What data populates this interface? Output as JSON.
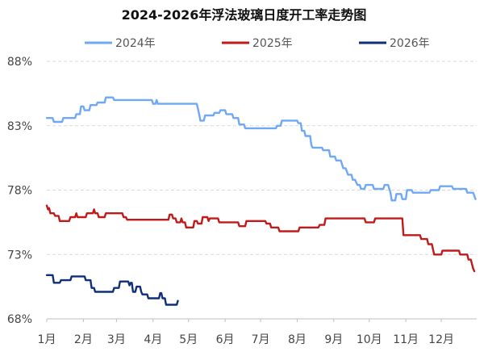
{
  "chart_data": {
    "type": "line",
    "title": "2024-2026年浮法玻璃日度开工率走势图",
    "xlabel": "",
    "ylabel": "",
    "x_unit": "day_of_year",
    "categories": [
      "1月",
      "2月",
      "3月",
      "4月",
      "5月",
      "6月",
      "7月",
      "8月",
      "9月",
      "10月",
      "11月",
      "12月"
    ],
    "yticks": [
      "68%",
      "73%",
      "78%",
      "83%",
      "88%"
    ],
    "ylim": [
      68,
      88
    ],
    "xlim": [
      1,
      365
    ],
    "grid": "horizontal dashed",
    "legend_position": "top",
    "series": [
      {
        "name": "2024年",
        "color": "#6FA8F5",
        "points": [
          [
            1,
            83.6
          ],
          [
            6,
            83.6
          ],
          [
            7,
            83.3
          ],
          [
            14,
            83.3
          ],
          [
            15,
            83.6
          ],
          [
            25,
            83.6
          ],
          [
            26,
            83.9
          ],
          [
            29,
            83.9
          ],
          [
            30,
            84.5
          ],
          [
            32,
            84.5
          ],
          [
            33,
            84.2
          ],
          [
            37,
            84.2
          ],
          [
            38,
            84.6
          ],
          [
            43,
            84.6
          ],
          [
            44,
            84.8
          ],
          [
            50,
            84.8
          ],
          [
            51,
            85.2
          ],
          [
            57,
            85.2
          ],
          [
            58,
            85.0
          ],
          [
            90,
            85.0
          ],
          [
            91,
            84.7
          ],
          [
            93,
            84.7
          ],
          [
            94,
            85.0
          ],
          [
            95,
            84.7
          ],
          [
            128,
            84.7
          ],
          [
            130,
            83.9
          ],
          [
            131,
            83.4
          ],
          [
            134,
            83.4
          ],
          [
            135,
            83.8
          ],
          [
            142,
            83.8
          ],
          [
            143,
            84.0
          ],
          [
            147,
            84.0
          ],
          [
            148,
            84.2
          ],
          [
            152,
            84.2
          ],
          [
            153,
            83.9
          ],
          [
            158,
            83.9
          ],
          [
            159,
            83.6
          ],
          [
            163,
            83.6
          ],
          [
            164,
            83.1
          ],
          [
            168,
            83.1
          ],
          [
            169,
            82.8
          ],
          [
            195,
            82.8
          ],
          [
            196,
            83.0
          ],
          [
            199,
            83.0
          ],
          [
            200,
            83.4
          ],
          [
            213,
            83.4
          ],
          [
            214,
            83.2
          ],
          [
            216,
            83.2
          ],
          [
            217,
            82.6
          ],
          [
            219,
            82.6
          ],
          [
            220,
            82.2
          ],
          [
            224,
            82.2
          ],
          [
            225,
            81.5
          ],
          [
            226,
            81.3
          ],
          [
            234,
            81.3
          ],
          [
            235,
            81.1
          ],
          [
            240,
            81.1
          ],
          [
            241,
            80.6
          ],
          [
            245,
            80.6
          ],
          [
            246,
            80.3
          ],
          [
            250,
            80.3
          ],
          [
            252,
            79.7
          ],
          [
            254,
            79.7
          ],
          [
            256,
            79.2
          ],
          [
            259,
            79.2
          ],
          [
            260,
            78.8
          ],
          [
            262,
            78.8
          ],
          [
            264,
            78.4
          ],
          [
            266,
            78.4
          ],
          [
            267,
            78.1
          ],
          [
            270,
            78.1
          ],
          [
            271,
            78.4
          ],
          [
            277,
            78.4
          ],
          [
            278,
            78.1
          ],
          [
            286,
            78.1
          ],
          [
            287,
            78.4
          ],
          [
            290,
            78.4
          ],
          [
            292,
            77.8
          ],
          [
            293,
            77.2
          ],
          [
            296,
            77.2
          ],
          [
            297,
            77.7
          ],
          [
            301,
            77.7
          ],
          [
            302,
            77.3
          ],
          [
            305,
            77.3
          ],
          [
            306,
            78.0
          ],
          [
            310,
            78.0
          ],
          [
            311,
            77.8
          ],
          [
            325,
            77.8
          ],
          [
            326,
            78.0
          ],
          [
            333,
            78.0
          ],
          [
            334,
            78.3
          ],
          [
            344,
            78.3
          ],
          [
            345,
            78.1
          ],
          [
            356,
            78.1
          ],
          [
            357,
            77.8
          ],
          [
            362,
            77.8
          ],
          [
            364,
            77.3
          ]
        ]
      },
      {
        "name": "2025年",
        "color": "#C21A1A",
        "points": [
          [
            1,
            76.8
          ],
          [
            2,
            76.5
          ],
          [
            3,
            76.6
          ],
          [
            4,
            76.2
          ],
          [
            7,
            76.2
          ],
          [
            8,
            76.0
          ],
          [
            11,
            76.0
          ],
          [
            12,
            75.6
          ],
          [
            20,
            75.6
          ],
          [
            21,
            75.9
          ],
          [
            25,
            75.9
          ],
          [
            26,
            76.2
          ],
          [
            27,
            75.9
          ],
          [
            34,
            75.9
          ],
          [
            35,
            76.2
          ],
          [
            40,
            76.2
          ],
          [
            41,
            76.5
          ],
          [
            42,
            76.2
          ],
          [
            44,
            76.2
          ],
          [
            45,
            75.9
          ],
          [
            50,
            75.9
          ],
          [
            51,
            76.2
          ],
          [
            65,
            76.2
          ],
          [
            66,
            75.9
          ],
          [
            68,
            75.9
          ],
          [
            69,
            75.7
          ],
          [
            104,
            75.7
          ],
          [
            105,
            76.1
          ],
          [
            107,
            76.1
          ],
          [
            108,
            75.8
          ],
          [
            110,
            75.8
          ],
          [
            111,
            75.5
          ],
          [
            114,
            75.5
          ],
          [
            115,
            75.8
          ],
          [
            116,
            75.5
          ],
          [
            118,
            75.5
          ],
          [
            119,
            75.1
          ],
          [
            125,
            75.1
          ],
          [
            126,
            75.6
          ],
          [
            128,
            75.6
          ],
          [
            129,
            75.4
          ],
          [
            132,
            75.4
          ],
          [
            133,
            75.9
          ],
          [
            137,
            75.9
          ],
          [
            138,
            75.6
          ],
          [
            139,
            75.8
          ],
          [
            146,
            75.8
          ],
          [
            147,
            75.5
          ],
          [
            163,
            75.5
          ],
          [
            164,
            75.2
          ],
          [
            169,
            75.2
          ],
          [
            170,
            75.6
          ],
          [
            186,
            75.6
          ],
          [
            187,
            75.4
          ],
          [
            190,
            75.4
          ],
          [
            191,
            75.1
          ],
          [
            197,
            75.1
          ],
          [
            198,
            74.8
          ],
          [
            214,
            74.8
          ],
          [
            215,
            75.1
          ],
          [
            231,
            75.1
          ],
          [
            232,
            75.3
          ],
          [
            236,
            75.3
          ],
          [
            237,
            75.8
          ],
          [
            270,
            75.8
          ],
          [
            271,
            75.5
          ],
          [
            278,
            75.5
          ],
          [
            279,
            75.8
          ],
          [
            302,
            75.8
          ],
          [
            303,
            74.5
          ],
          [
            317,
            74.5
          ],
          [
            318,
            74.2
          ],
          [
            323,
            74.2
          ],
          [
            324,
            73.8
          ],
          [
            327,
            73.8
          ],
          [
            328,
            73.4
          ],
          [
            329,
            73.0
          ],
          [
            335,
            73.0
          ],
          [
            336,
            73.3
          ],
          [
            350,
            73.3
          ],
          [
            351,
            73.0
          ],
          [
            357,
            73.0
          ],
          [
            358,
            72.6
          ],
          [
            360,
            72.6
          ],
          [
            362,
            71.9
          ],
          [
            363,
            71.7
          ]
        ]
      },
      {
        "name": "2026年",
        "color": "#0F2F7A",
        "points": [
          [
            1,
            71.4
          ],
          [
            6,
            71.4
          ],
          [
            7,
            70.8
          ],
          [
            12,
            70.8
          ],
          [
            13,
            71.0
          ],
          [
            21,
            71.0
          ],
          [
            22,
            71.3
          ],
          [
            33,
            71.3
          ],
          [
            34,
            71.0
          ],
          [
            38,
            71.0
          ],
          [
            39,
            70.4
          ],
          [
            41,
            70.4
          ],
          [
            42,
            70.1
          ],
          [
            57,
            70.1
          ],
          [
            58,
            70.4
          ],
          [
            62,
            70.4
          ],
          [
            63,
            70.9
          ],
          [
            70,
            70.9
          ],
          [
            71,
            70.6
          ],
          [
            72,
            70.8
          ],
          [
            73,
            70.8
          ],
          [
            74,
            70.1
          ],
          [
            76,
            70.1
          ],
          [
            77,
            70.5
          ],
          [
            80,
            70.5
          ],
          [
            81,
            70.1
          ],
          [
            82,
            69.9
          ],
          [
            86,
            69.9
          ],
          [
            87,
            69.6
          ],
          [
            96,
            69.6
          ],
          [
            97,
            70.0
          ],
          [
            98,
            70.0
          ],
          [
            99,
            69.6
          ],
          [
            101,
            69.6
          ],
          [
            102,
            69.1
          ],
          [
            111,
            69.1
          ],
          [
            112,
            69.4
          ]
        ]
      }
    ]
  }
}
